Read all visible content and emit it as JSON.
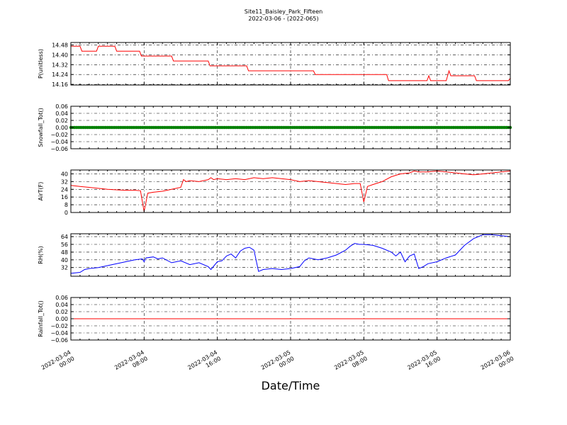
{
  "title_line1": "Site11_Baisley_Park_Fifteen",
  "title_line2": "2022-03-06 - (2022-065)",
  "xlabel": "Date/Time",
  "x_ticks": [
    {
      "l1": "2022-03-04",
      "l2": "00:00",
      "h": 0
    },
    {
      "l1": "2022-03-04",
      "l2": "08:00",
      "h": 8
    },
    {
      "l1": "2022-03-04",
      "l2": "16:00",
      "h": 16
    },
    {
      "l1": "2022-03-05",
      "l2": "00:00",
      "h": 24
    },
    {
      "l1": "2022-03-05",
      "l2": "08:00",
      "h": 32
    },
    {
      "l1": "2022-03-05",
      "l2": "16:00",
      "h": 40
    },
    {
      "l1": "2022-03-06",
      "l2": "00:00",
      "h": 48
    }
  ],
  "chart_data": [
    {
      "type": "line",
      "ylabel": "P(unitless)",
      "ylim": [
        14.155,
        14.5
      ],
      "yticks": [
        "14.48",
        "14.40",
        "14.32",
        "14.24",
        "14.16"
      ],
      "ytick_values": [
        14.48,
        14.4,
        14.32,
        14.24,
        14.16
      ],
      "grid": true,
      "series": [
        {
          "color": "#ff0000",
          "x": [
            0,
            1.0,
            1.2,
            2.8,
            3.0,
            4.8,
            5.0,
            7.5,
            7.7,
            11.0,
            11.2,
            15.0,
            15.2,
            19.2,
            19.4,
            26.5,
            26.7,
            34.5,
            34.7,
            38.9,
            39.1,
            39.3,
            41.0,
            41.3,
            41.5,
            43.0,
            44.1,
            44.3,
            47.8,
            48
          ],
          "y": [
            14.47,
            14.47,
            14.43,
            14.43,
            14.47,
            14.47,
            14.43,
            14.43,
            14.39,
            14.39,
            14.35,
            14.35,
            14.31,
            14.31,
            14.27,
            14.27,
            14.24,
            14.24,
            14.19,
            14.19,
            14.23,
            14.19,
            14.19,
            14.27,
            14.23,
            14.23,
            14.23,
            14.19,
            14.19,
            14.21
          ]
        }
      ]
    },
    {
      "type": "line",
      "ylabel": "Snowfall_Tot()",
      "ylim": [
        -0.06,
        0.06
      ],
      "yticks": [
        "0.06",
        "0.04",
        "0.02",
        "0.00",
        "−0.02",
        "−0.04",
        "−0.06"
      ],
      "ytick_values": [
        0.06,
        0.04,
        0.02,
        0.0,
        -0.02,
        -0.04,
        -0.06
      ],
      "grid": true,
      "series": [
        {
          "color": "#008000",
          "marker": "point",
          "constant": 0.0
        }
      ]
    },
    {
      "type": "line",
      "ylabel": "AirT(F)",
      "ylim": [
        0,
        44
      ],
      "yticks": [
        "40",
        "32",
        "24",
        "16",
        "8",
        "0"
      ],
      "ytick_values": [
        40,
        32,
        24,
        16,
        8,
        0
      ],
      "grid": true,
      "series": [
        {
          "color": "#ff0000",
          "x": [
            0,
            1,
            2,
            3,
            4,
            5,
            6,
            7,
            7.6,
            8.0,
            8.4,
            9,
            10,
            11,
            12,
            12.3,
            12.6,
            13,
            14,
            15,
            15.3,
            15.6,
            16,
            17,
            18,
            19,
            20,
            21,
            22,
            23,
            24,
            25,
            26,
            27,
            28,
            29,
            30,
            31,
            31.6,
            32.0,
            32.4,
            33,
            34,
            35,
            36,
            37,
            37.5,
            38,
            39,
            40,
            41,
            42,
            43,
            44,
            45,
            46,
            47,
            48
          ],
          "y": [
            28,
            27,
            26,
            25,
            24,
            23.5,
            23,
            23,
            22.5,
            1,
            20,
            21,
            22,
            24,
            26,
            34,
            32,
            33,
            32,
            34,
            36,
            34,
            35,
            34,
            35,
            34,
            36,
            35,
            36,
            35,
            34,
            32,
            33,
            32,
            31,
            30,
            29,
            30,
            30,
            11,
            27,
            29,
            32,
            37,
            40,
            41,
            43,
            42,
            42,
            43,
            42,
            41,
            40,
            39,
            40,
            41,
            42,
            43
          ]
        }
      ]
    },
    {
      "type": "line",
      "ylabel": "RH(%)",
      "ylim": [
        23,
        67
      ],
      "yticks": [
        "64",
        "56",
        "48",
        "40",
        "32"
      ],
      "ytick_values": [
        64,
        56,
        48,
        40,
        32
      ],
      "grid": true,
      "series": [
        {
          "color": "#0000ff",
          "x": [
            0,
            1,
            1.5,
            2,
            3,
            4,
            5,
            6,
            7,
            7.8,
            8.0,
            8.2,
            9,
            9.5,
            10,
            11,
            12,
            13,
            14,
            15,
            15.3,
            16,
            16.5,
            17,
            17.5,
            18,
            18.5,
            19,
            19.5,
            20,
            20.5,
            21,
            22,
            23,
            24,
            25,
            25.5,
            26,
            27,
            28,
            29,
            30,
            30.5,
            31,
            31.5,
            32,
            33,
            34,
            35,
            35.5,
            36,
            36.5,
            37,
            37.5,
            38,
            38.5,
            39,
            40,
            41,
            42,
            43,
            44,
            45,
            46,
            47,
            48
          ],
          "y": [
            26,
            27,
            30,
            31,
            32,
            34,
            36,
            38,
            40,
            41,
            38,
            42,
            43,
            41,
            42,
            37,
            39,
            35,
            37,
            33,
            30,
            38,
            39,
            44,
            46,
            42,
            49,
            52,
            53,
            50,
            28,
            30,
            31,
            30,
            31,
            33,
            39,
            42,
            40,
            42,
            45,
            50,
            54,
            57,
            56,
            56,
            55,
            52,
            48,
            44,
            48,
            38,
            44,
            46,
            31,
            33,
            36,
            38,
            42,
            45,
            55,
            62,
            66,
            66,
            65,
            64
          ]
        }
      ]
    },
    {
      "type": "line",
      "ylabel": "Rainfall_Tot()",
      "ylim": [
        -0.06,
        0.06
      ],
      "yticks": [
        "0.06",
        "0.04",
        "0.02",
        "0.00",
        "−0.02",
        "−0.04",
        "−0.06"
      ],
      "ytick_values": [
        0.06,
        0.04,
        0.02,
        0.0,
        -0.02,
        -0.04,
        -0.06
      ],
      "grid": true,
      "series": [
        {
          "color": "#ff0000",
          "constant": 0.0
        }
      ]
    }
  ]
}
